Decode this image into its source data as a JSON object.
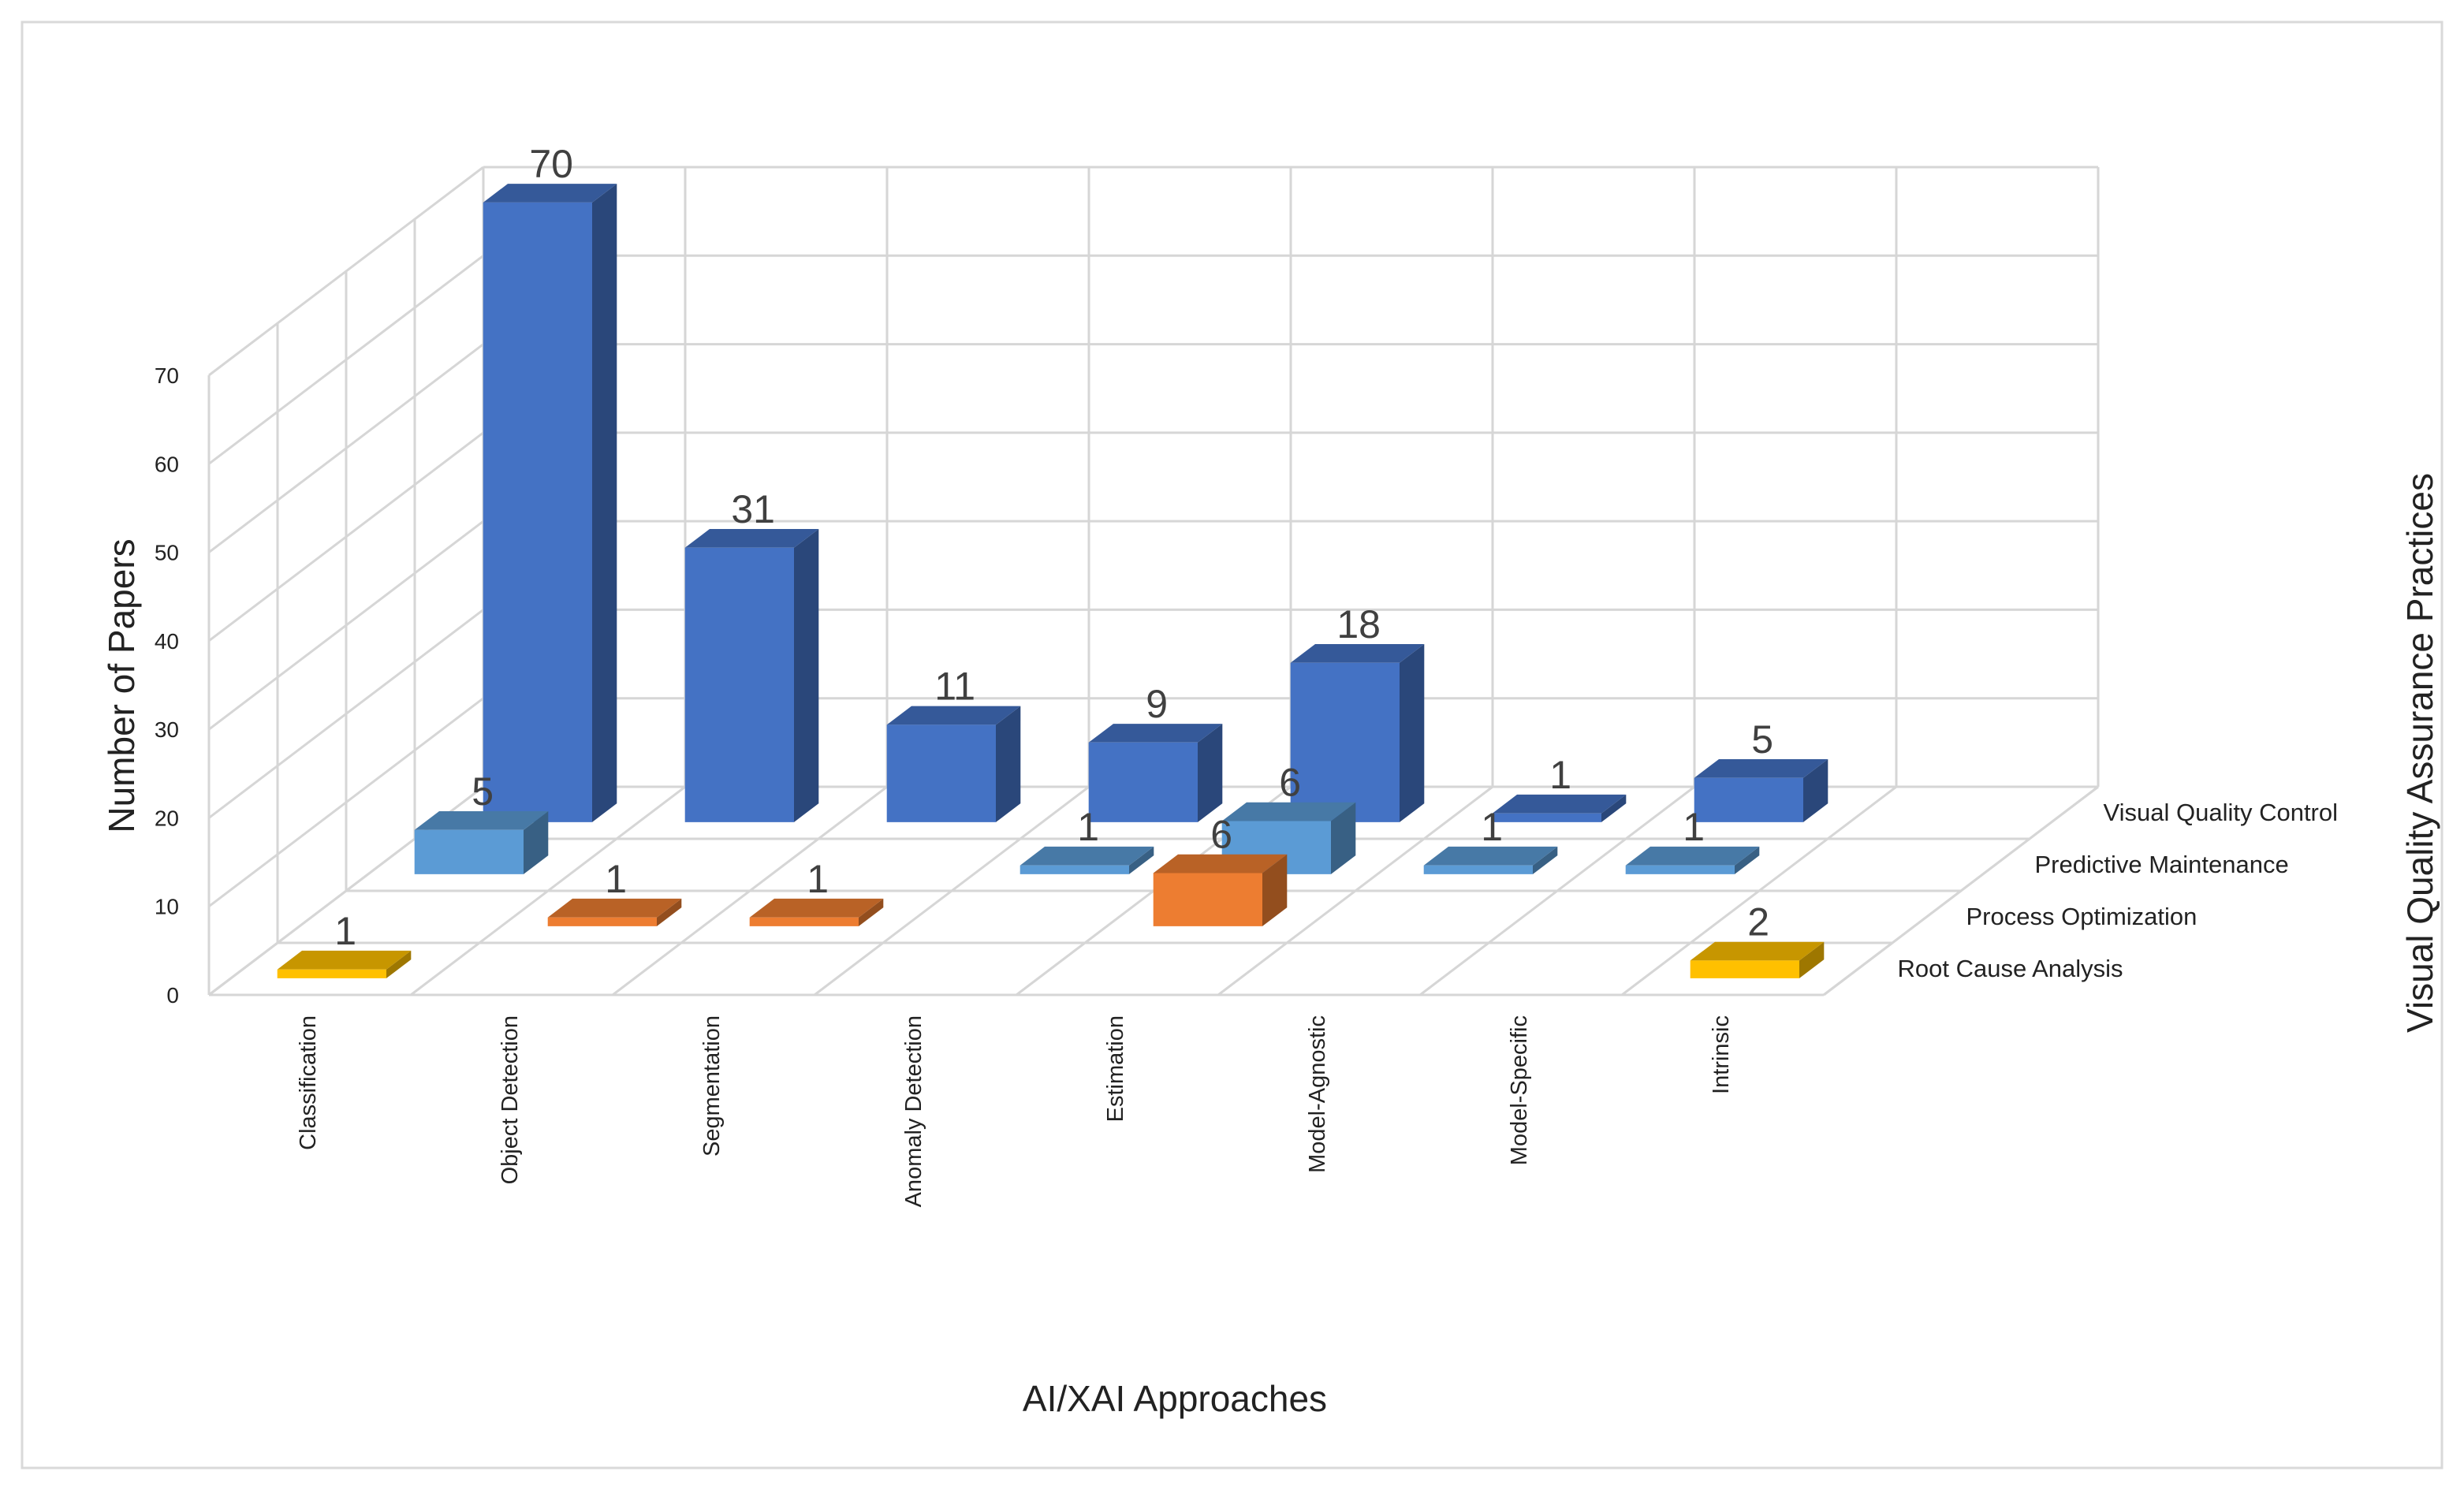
{
  "chart_data": {
    "type": "bar",
    "title": "",
    "xlabel": "AI/XAI Approaches",
    "ylabel": "Number of Papers",
    "zlabel": "Visual Quality Assurance Practices",
    "ylim": [
      0,
      70
    ],
    "yticks": [
      "0",
      "10",
      "20",
      "30",
      "40",
      "50",
      "60",
      "70"
    ],
    "categories": [
      "Classification",
      "Object Detection",
      "Segmentation",
      "Anomaly Detection",
      "Estimation",
      "Model-Agnostic",
      "Model-Specific",
      "Intrinsic"
    ],
    "grid": true,
    "series": [
      {
        "name": "Root Cause Analysis",
        "values": [
          1,
          null,
          null,
          null,
          null,
          null,
          null,
          2
        ]
      },
      {
        "name": "Process Optimization",
        "values": [
          null,
          1,
          1,
          null,
          6,
          null,
          null,
          null
        ]
      },
      {
        "name": "Predictive Maintenance",
        "values": [
          5,
          null,
          null,
          1,
          6,
          1,
          1,
          null
        ]
      },
      {
        "name": "Visual Quality Control",
        "values": [
          70,
          31,
          11,
          9,
          18,
          1,
          5,
          null
        ]
      }
    ],
    "series_colors": [
      "#FFC000",
      "#ED7D31",
      "#5B9BD5",
      "#4472C4"
    ]
  }
}
